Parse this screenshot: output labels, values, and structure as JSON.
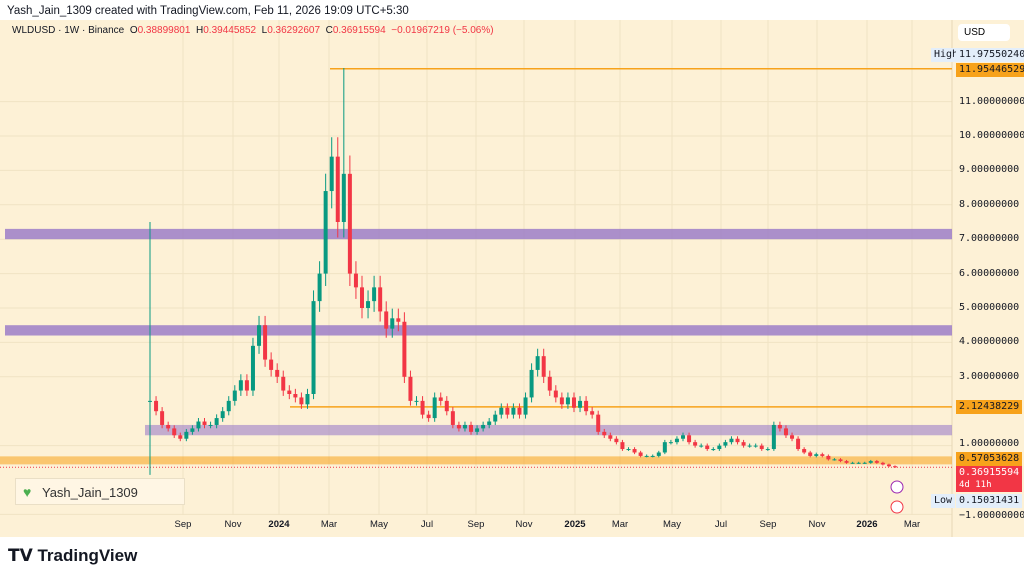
{
  "credit": "Yash_Jain_1309 created with TradingView.com, Feb 11, 2026 19:09 UTC+5:30",
  "legend": {
    "symbol": "WLDUSD · 1W · Binance",
    "o_label": "O",
    "o": "0.38899801",
    "h_label": "H",
    "h": "0.39445852",
    "l_label": "L",
    "l": "0.36292607",
    "c_label": "C",
    "c": "0.36915594",
    "change": "−0.01967219 (−5.06%)"
  },
  "currency": "USD",
  "watermark": "Yash_Jain_1309",
  "brand": "TradingView",
  "colors": {
    "up": "#089981",
    "down": "#f23645",
    "level": "#f7a21b",
    "zone": "#9c7ec8",
    "background": "#fdf1d6"
  },
  "chart_data": {
    "type": "candlestick",
    "symbol": "WLDUSD",
    "interval": "1W",
    "ylim": [
      -1,
      12.5
    ],
    "y_ticks": [
      "11.00000000",
      "10.00000000",
      "9.00000000",
      "8.00000000",
      "7.00000000",
      "6.00000000",
      "5.00000000",
      "4.00000000",
      "3.00000000",
      "1.00000000",
      "−1.00000000"
    ],
    "y_tick_values": [
      11,
      10,
      9,
      8,
      7,
      6,
      5,
      4,
      3,
      1,
      -1
    ],
    "x_ticks": [
      "Sep",
      "Nov",
      "2024",
      "Mar",
      "May",
      "Jul",
      "Sep",
      "Nov",
      "2025",
      "Mar",
      "May",
      "Jul",
      "Sep",
      "Nov",
      "2026",
      "Mar"
    ],
    "first_candle": {
      "open": 2.3,
      "high": 7.5,
      "low": 0.15,
      "close": 2.3
    },
    "closes": [
      2.3,
      2.0,
      1.6,
      1.5,
      1.3,
      1.2,
      1.4,
      1.5,
      1.7,
      1.6,
      1.6,
      1.8,
      2.0,
      2.3,
      2.6,
      2.9,
      2.6,
      3.9,
      4.5,
      3.5,
      3.2,
      3.0,
      2.6,
      2.5,
      2.4,
      2.2,
      2.5,
      5.2,
      6.0,
      8.4,
      9.4,
      7.5,
      8.9,
      6.0,
      5.6,
      5.0,
      5.2,
      5.6,
      4.9,
      4.4,
      4.7,
      4.6,
      3.0,
      2.3,
      2.3,
      1.9,
      1.8,
      2.4,
      2.3,
      2.0,
      1.6,
      1.5,
      1.6,
      1.4,
      1.5,
      1.6,
      1.7,
      1.9,
      2.1,
      1.9,
      2.1,
      1.9,
      2.4,
      3.2,
      3.6,
      3.0,
      2.6,
      2.4,
      2.2,
      2.4,
      2.1,
      2.3,
      2.0,
      1.9,
      1.4,
      1.3,
      1.2,
      1.1,
      0.9,
      0.9,
      0.8,
      0.7,
      0.7,
      0.7,
      0.8,
      1.1,
      1.1,
      1.2,
      1.3,
      1.1,
      1.0,
      1.0,
      0.9,
      0.9,
      1.0,
      1.1,
      1.2,
      1.1,
      1.0,
      1.0,
      1.0,
      0.9,
      0.9,
      1.6,
      1.5,
      1.3,
      1.2,
      0.9,
      0.8,
      0.7,
      0.75,
      0.7,
      0.6,
      0.6,
      0.55,
      0.5,
      0.5,
      0.5,
      0.5,
      0.55,
      0.5,
      0.45,
      0.4,
      0.37
    ],
    "all_time_high": 11.9755024,
    "all_time_low": 0.15031431,
    "high_label": "High",
    "high_value": "11.97550240",
    "low_label": "Low",
    "low_value": "0.15031431",
    "levels": [
      {
        "value": 11.95446529,
        "label": "11.95446529"
      },
      {
        "value": 2.12438229,
        "label": "2.12438229"
      },
      {
        "value": 0.57053628,
        "label": "0.57053628"
      }
    ],
    "zones": [
      [
        7.0,
        7.3
      ],
      [
        4.2,
        4.5
      ],
      [
        1.3,
        1.6
      ]
    ],
    "last_price": {
      "value": 0.36915594,
      "label": "0.36915594",
      "countdown": "4d 11h"
    }
  }
}
